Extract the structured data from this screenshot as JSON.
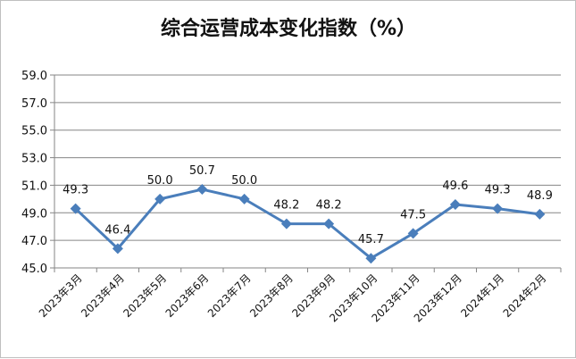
{
  "chart_data": {
    "type": "line",
    "title": "综合运营成本变化指数（%）",
    "categories": [
      "2023年3月",
      "2023年4月",
      "2023年5月",
      "2023年6月",
      "2023年7月",
      "2023年8月",
      "2023年9月",
      "2023年10月",
      "2023年11月",
      "2023年12月",
      "2024年1月",
      "2024年2月"
    ],
    "series": [
      {
        "values": [
          49.3,
          46.4,
          50.0,
          50.7,
          50.0,
          48.2,
          48.2,
          45.7,
          47.5,
          49.6,
          49.3,
          48.9
        ]
      }
    ],
    "data_labels": [
      "49.3",
      "46.4",
      "50.0",
      "50.7",
      "50.0",
      "48.2",
      "48.2",
      "45.7",
      "47.5",
      "49.6",
      "49.3",
      "48.9"
    ],
    "y_ticks": [
      "45.0",
      "47.0",
      "49.0",
      "51.0",
      "53.0",
      "55.0",
      "57.0",
      "59.0"
    ],
    "ylim": [
      45,
      59
    ],
    "grid": true,
    "legend": "none",
    "colors": {
      "line": "#4a7ebb",
      "marker": "#4a7ebb",
      "grid": "#868686",
      "axis": "#868686"
    }
  }
}
